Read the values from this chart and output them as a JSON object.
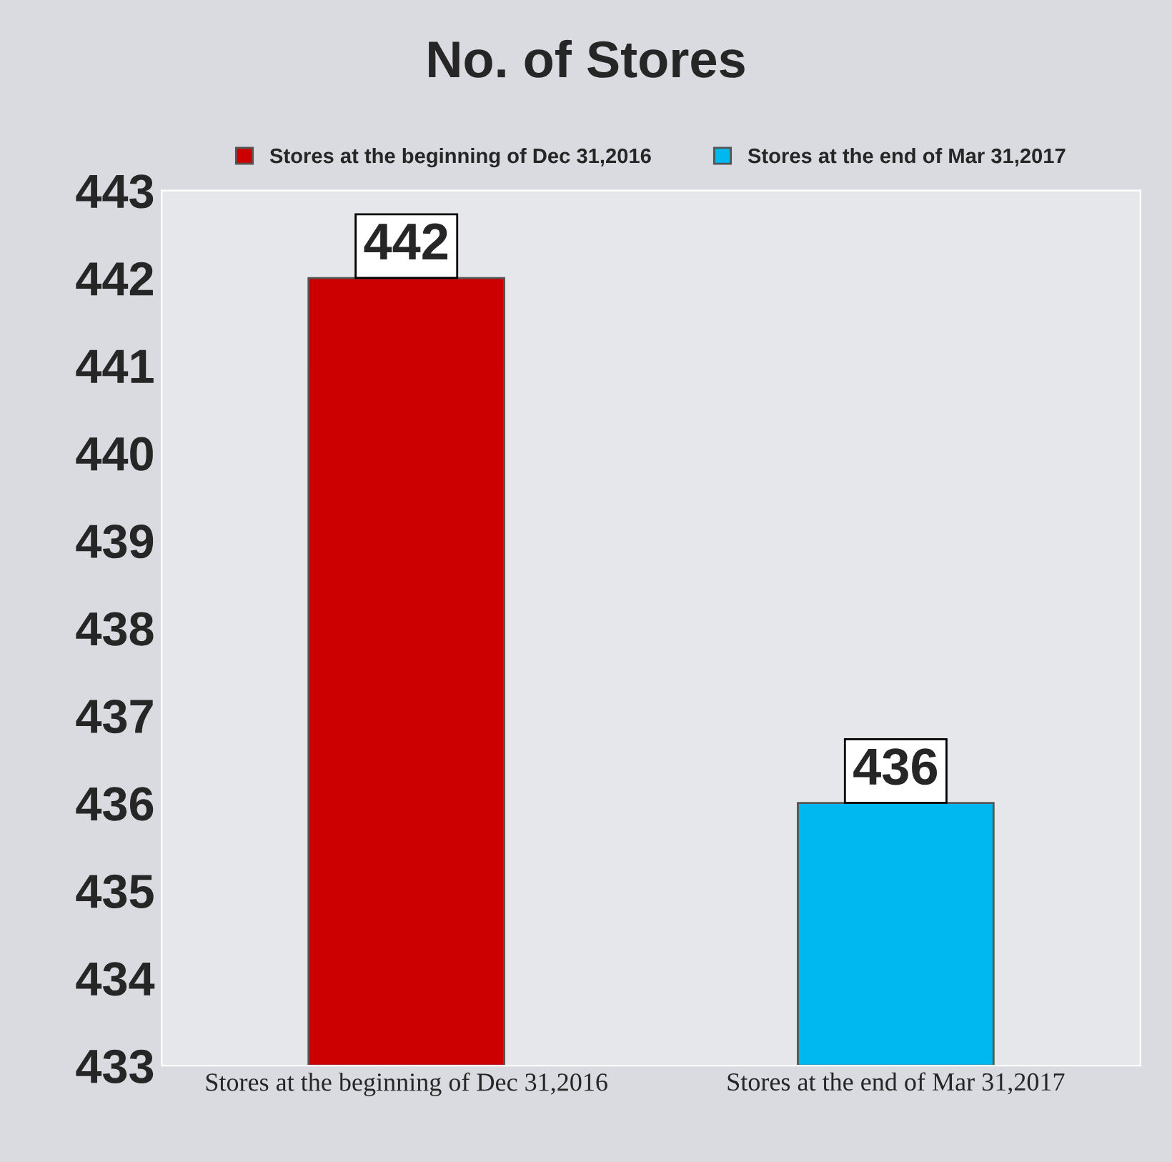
{
  "chart_data": {
    "type": "bar",
    "title": "No. of Stores",
    "categories": [
      "Stores at the beginning of Dec 31,2016",
      "Stores at the end of Mar 31,2017"
    ],
    "series": [
      {
        "name": "Stores at the beginning of Dec 31,2016",
        "color": "#cc0000",
        "values": [
          442,
          null
        ]
      },
      {
        "name": "Stores at the end of Mar 31,2017",
        "color": "#00b8f0",
        "values": [
          null,
          436
        ]
      }
    ],
    "ylim": [
      433,
      443
    ],
    "yticks": [
      433,
      434,
      435,
      436,
      437,
      438,
      439,
      440,
      441,
      442,
      443
    ],
    "data_labels": true,
    "legend": "top",
    "grid": false
  }
}
